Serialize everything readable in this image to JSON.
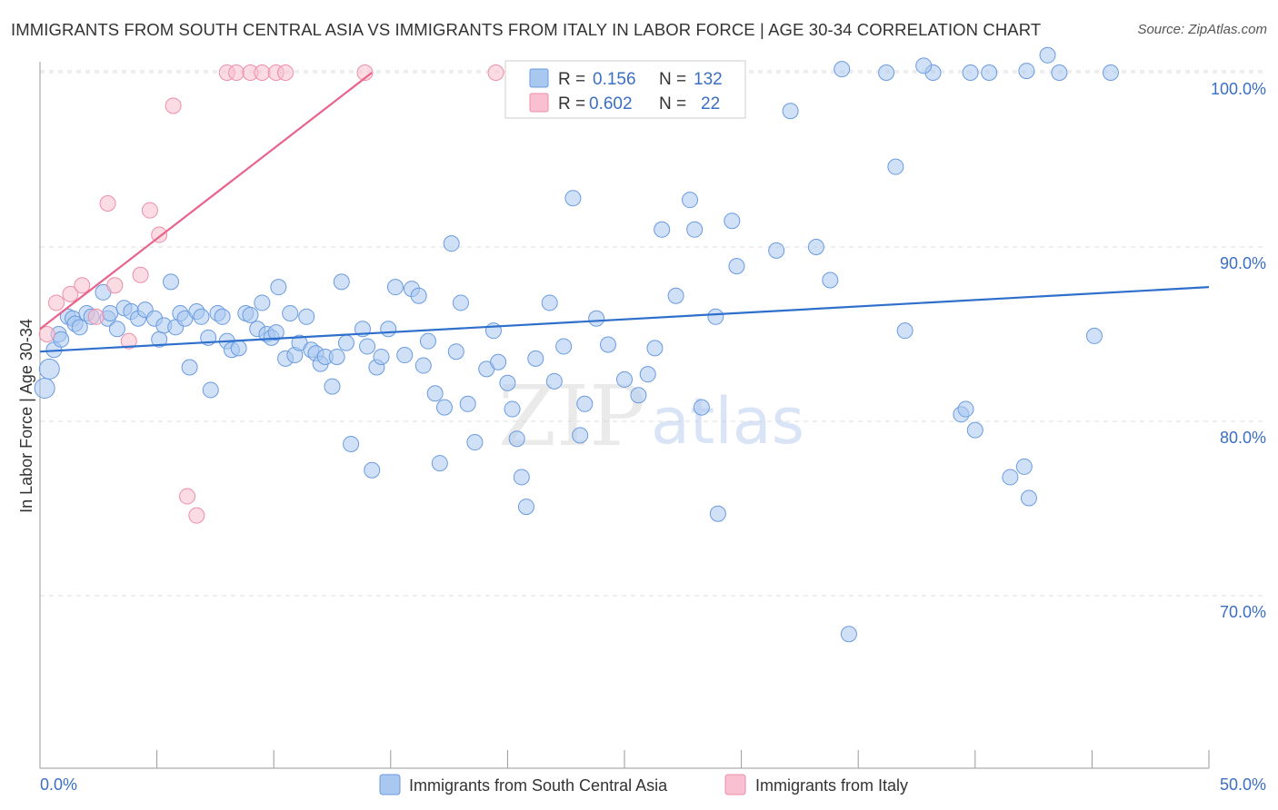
{
  "title": "IMMIGRANTS FROM SOUTH CENTRAL ASIA VS IMMIGRANTS FROM ITALY IN LABOR FORCE | AGE 30-34 CORRELATION CHART",
  "source": "Source: ZipAtlas.com",
  "watermark": {
    "zip": "ZIP",
    "atlas": "atlas"
  },
  "colors": {
    "blue_fill": "#a9c8f0",
    "blue_stroke": "#6a9be0",
    "blue_line": "#2f6fcc",
    "pink_fill": "#f8c0d0",
    "pink_stroke": "#ee8ea8",
    "pink_line": "#e8648c",
    "tick_label": "#3a6fc4",
    "grid": "#dddddd"
  },
  "legend": {
    "rows": [
      {
        "r_label": "R =",
        "r_value": "0.156",
        "n_label": "N =",
        "n_value": "132"
      },
      {
        "r_label": "R =",
        "r_value": "0.602",
        "n_label": "N =",
        "n_value": "22"
      }
    ]
  },
  "bottom_legend": [
    "Immigrants from South Central Asia",
    "Immigrants from Italy"
  ],
  "chart_data": {
    "type": "scatter",
    "title": "IMMIGRANTS FROM SOUTH CENTRAL ASIA VS IMMIGRANTS FROM ITALY IN LABOR FORCE | AGE 30-34 CORRELATION CHART",
    "xlabel": "",
    "ylabel": "In Labor Force | Age 30-34",
    "xlim": [
      0,
      50
    ],
    "ylim": [
      60,
      100.5
    ],
    "x_tick_labels": [
      "0.0%",
      "50.0%"
    ],
    "y_ticks": [
      70,
      80,
      90,
      100
    ],
    "y_tick_labels": [
      "70.0%",
      "80.0%",
      "90.0%",
      "100.0%"
    ],
    "grid": true,
    "legend_position": "top-center",
    "series": [
      {
        "name": "Immigrants from South Central Asia",
        "color": "#a9c8f0",
        "R": 0.156,
        "N": 132,
        "trend": {
          "x": [
            0,
            50
          ],
          "y": [
            84.0,
            87.7
          ]
        },
        "points": [
          [
            0.2,
            81.9
          ],
          [
            0.4,
            83.0
          ],
          [
            0.6,
            84.1
          ],
          [
            0.8,
            85.0
          ],
          [
            0.9,
            84.7
          ],
          [
            1.2,
            86.0
          ],
          [
            1.4,
            85.9
          ],
          [
            1.5,
            85.6
          ],
          [
            1.7,
            85.4
          ],
          [
            2.0,
            86.2
          ],
          [
            2.2,
            86.0
          ],
          [
            2.7,
            87.4
          ],
          [
            2.9,
            85.9
          ],
          [
            3.0,
            86.2
          ],
          [
            3.3,
            85.3
          ],
          [
            3.6,
            86.5
          ],
          [
            3.9,
            86.3
          ],
          [
            4.2,
            85.9
          ],
          [
            4.5,
            86.4
          ],
          [
            4.9,
            85.9
          ],
          [
            5.1,
            84.7
          ],
          [
            5.3,
            85.5
          ],
          [
            5.6,
            88.0
          ],
          [
            5.8,
            85.4
          ],
          [
            6.0,
            86.2
          ],
          [
            6.2,
            85.9
          ],
          [
            6.4,
            83.1
          ],
          [
            6.7,
            86.3
          ],
          [
            6.9,
            86.0
          ],
          [
            7.2,
            84.8
          ],
          [
            7.3,
            81.8
          ],
          [
            7.6,
            86.2
          ],
          [
            7.8,
            86.0
          ],
          [
            8.0,
            84.6
          ],
          [
            8.2,
            84.1
          ],
          [
            8.5,
            84.2
          ],
          [
            8.8,
            86.2
          ],
          [
            9.0,
            86.1
          ],
          [
            9.3,
            85.3
          ],
          [
            9.5,
            86.8
          ],
          [
            9.7,
            85.0
          ],
          [
            9.9,
            84.8
          ],
          [
            10.1,
            85.1
          ],
          [
            10.2,
            87.7
          ],
          [
            10.5,
            83.6
          ],
          [
            10.7,
            86.2
          ],
          [
            10.9,
            83.8
          ],
          [
            11.1,
            84.5
          ],
          [
            11.4,
            86.0
          ],
          [
            11.6,
            84.1
          ],
          [
            11.8,
            83.9
          ],
          [
            12.0,
            83.3
          ],
          [
            12.2,
            83.7
          ],
          [
            12.5,
            82.0
          ],
          [
            12.7,
            83.7
          ],
          [
            12.9,
            88.0
          ],
          [
            13.1,
            84.5
          ],
          [
            13.3,
            78.7
          ],
          [
            13.8,
            85.3
          ],
          [
            14.0,
            84.3
          ],
          [
            14.2,
            77.2
          ],
          [
            14.4,
            83.1
          ],
          [
            14.6,
            83.7
          ],
          [
            14.9,
            85.3
          ],
          [
            15.2,
            87.7
          ],
          [
            15.6,
            83.8
          ],
          [
            15.9,
            87.6
          ],
          [
            16.2,
            87.2
          ],
          [
            16.4,
            83.2
          ],
          [
            16.6,
            84.6
          ],
          [
            16.9,
            81.6
          ],
          [
            17.1,
            77.6
          ],
          [
            17.3,
            80.8
          ],
          [
            17.6,
            90.2
          ],
          [
            17.8,
            84.0
          ],
          [
            18.0,
            86.8
          ],
          [
            18.3,
            81.0
          ],
          [
            18.6,
            78.8
          ],
          [
            19.1,
            83.0
          ],
          [
            19.4,
            85.2
          ],
          [
            19.6,
            83.4
          ],
          [
            20.0,
            82.2
          ],
          [
            20.2,
            80.7
          ],
          [
            20.4,
            79.0
          ],
          [
            20.6,
            76.8
          ],
          [
            20.8,
            75.1
          ],
          [
            21.2,
            83.6
          ],
          [
            21.8,
            86.8
          ],
          [
            22.0,
            82.3
          ],
          [
            22.4,
            84.3
          ],
          [
            22.8,
            92.8
          ],
          [
            23.1,
            79.2
          ],
          [
            23.3,
            81.0
          ],
          [
            23.8,
            85.9
          ],
          [
            24.3,
            84.4
          ],
          [
            25.0,
            82.4
          ],
          [
            25.6,
            81.5
          ],
          [
            26.0,
            82.7
          ],
          [
            26.3,
            84.2
          ],
          [
            26.6,
            91.0
          ],
          [
            27.2,
            87.2
          ],
          [
            27.8,
            92.7
          ],
          [
            28.0,
            91.0
          ],
          [
            28.3,
            80.8
          ],
          [
            28.9,
            86.0
          ],
          [
            29.0,
            74.7
          ],
          [
            29.6,
            91.5
          ],
          [
            29.8,
            88.9
          ],
          [
            31.5,
            89.8
          ],
          [
            32.1,
            97.8
          ],
          [
            33.2,
            90.0
          ],
          [
            33.8,
            88.1
          ],
          [
            34.6,
            67.8
          ],
          [
            36.2,
            100.0
          ],
          [
            36.6,
            94.6
          ],
          [
            37.0,
            85.2
          ],
          [
            38.2,
            100.0
          ],
          [
            39.4,
            80.4
          ],
          [
            39.6,
            80.7
          ],
          [
            40.0,
            79.5
          ],
          [
            39.8,
            100.0
          ],
          [
            40.6,
            100.0
          ],
          [
            41.5,
            76.8
          ],
          [
            42.1,
            77.4
          ],
          [
            42.3,
            75.6
          ],
          [
            43.6,
            100.0
          ],
          [
            45.8,
            100.0
          ],
          [
            43.1,
            101.0
          ],
          [
            45.1,
            84.9
          ],
          [
            34.3,
            100.2
          ],
          [
            37.8,
            100.4
          ],
          [
            42.2,
            100.1
          ]
        ]
      },
      {
        "name": "Immigrants from Italy",
        "color": "#f8c0d0",
        "R": 0.602,
        "N": 22,
        "trend": {
          "x": [
            0,
            14.2
          ],
          "y": [
            85.3,
            100.0
          ]
        },
        "points": [
          [
            0.3,
            85.0
          ],
          [
            0.7,
            86.8
          ],
          [
            1.3,
            87.3
          ],
          [
            1.8,
            87.8
          ],
          [
            2.4,
            86.0
          ],
          [
            2.9,
            92.5
          ],
          [
            3.2,
            87.8
          ],
          [
            3.8,
            84.6
          ],
          [
            4.3,
            88.4
          ],
          [
            4.7,
            92.1
          ],
          [
            5.1,
            90.7
          ],
          [
            5.7,
            98.1
          ],
          [
            6.3,
            75.7
          ],
          [
            6.7,
            74.6
          ],
          [
            8.0,
            100.0
          ],
          [
            8.4,
            100.0
          ],
          [
            9.0,
            100.0
          ],
          [
            9.5,
            100.0
          ],
          [
            10.1,
            100.0
          ],
          [
            10.5,
            100.0
          ],
          [
            13.9,
            100.0
          ],
          [
            19.5,
            100.0
          ]
        ]
      }
    ]
  }
}
